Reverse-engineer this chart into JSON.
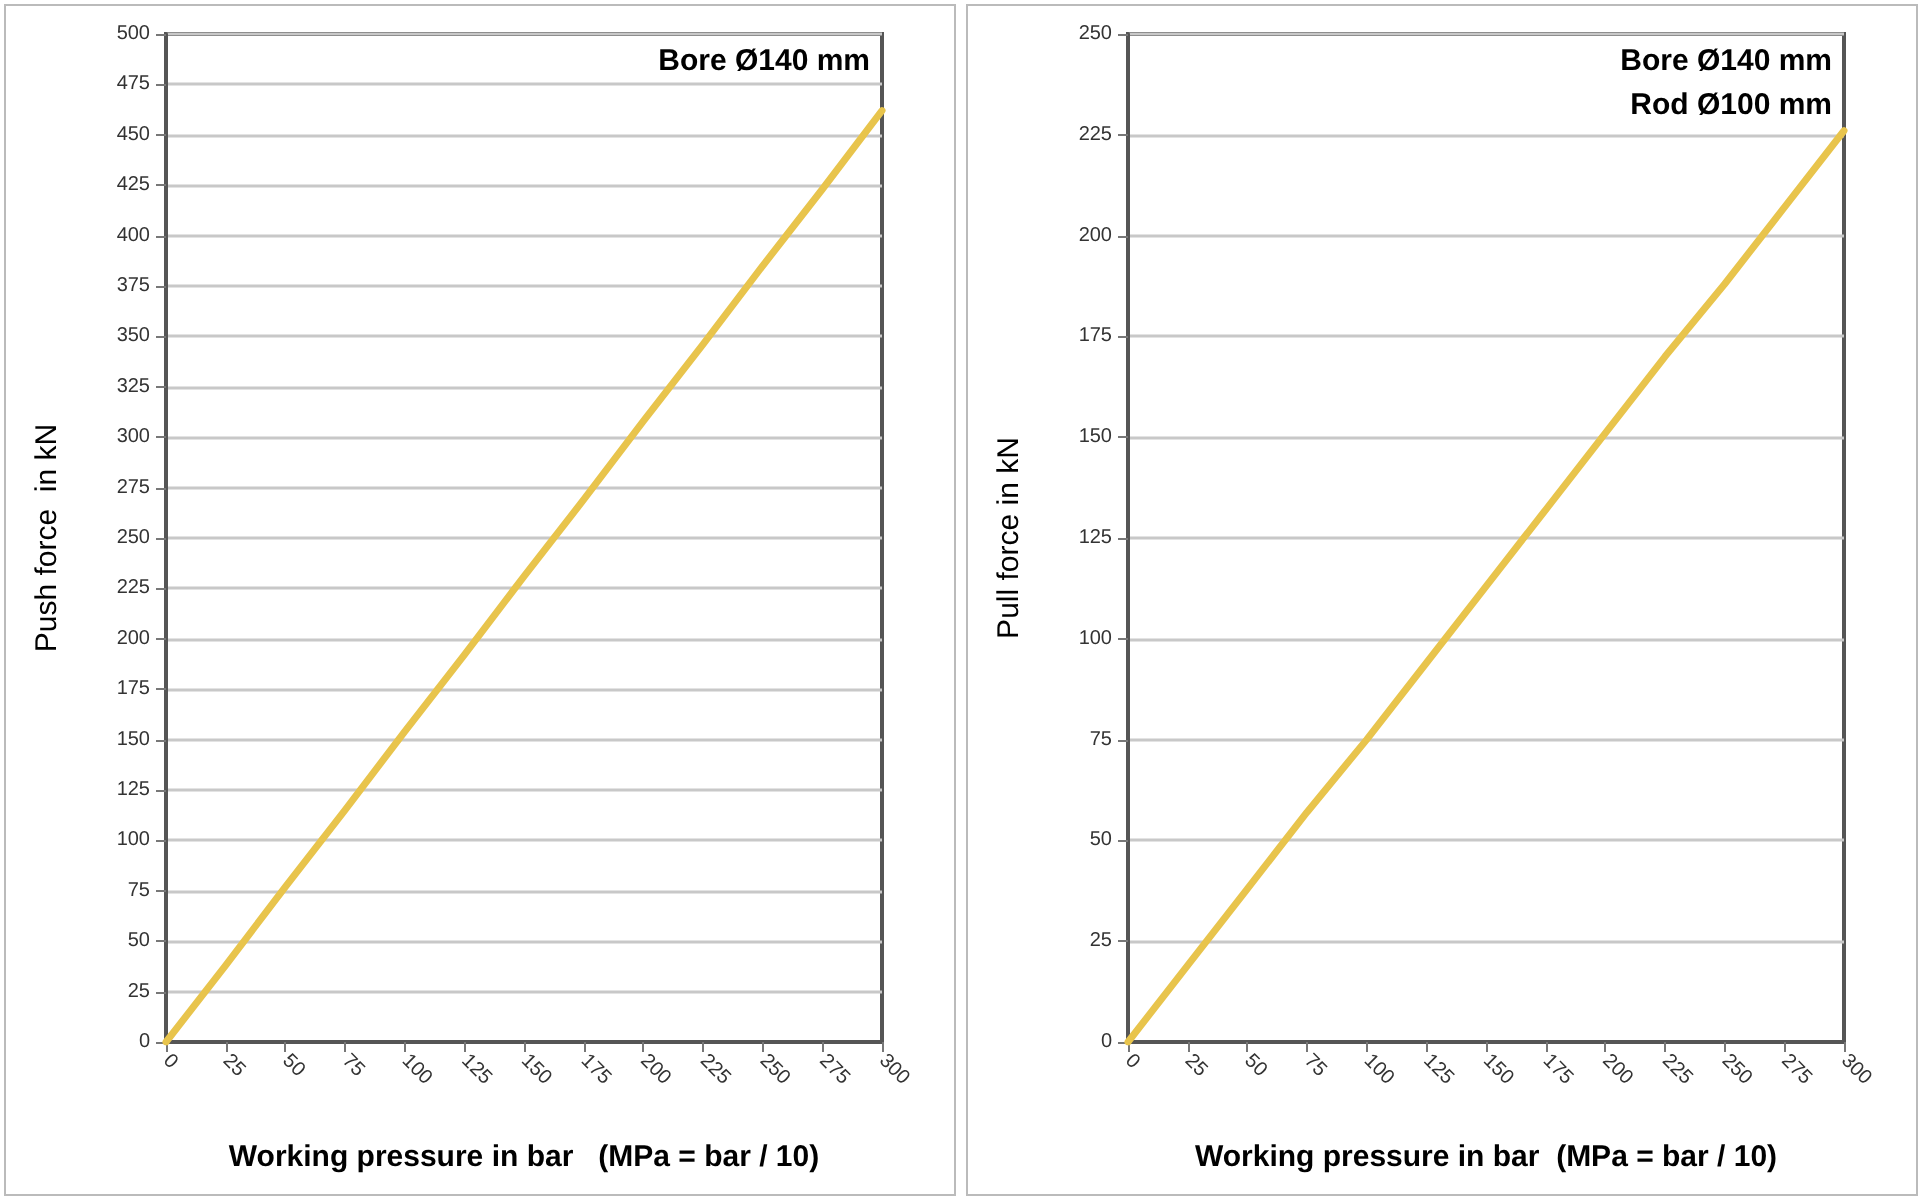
{
  "chart_data": [
    {
      "type": "line",
      "ylabel": "Push force  in kN",
      "xlabel": "Working pressure in bar   (MPa = bar / 10)",
      "annotations": [
        "Bore Ø140 mm"
      ],
      "x": [
        0,
        25,
        50,
        75,
        100,
        125,
        150,
        175,
        200,
        225,
        250,
        275,
        300
      ],
      "series": [
        {
          "color": "#e8c44c",
          "values": [
            0,
            38,
            77,
            115,
            154,
            192,
            231,
            269,
            308,
            346,
            385,
            423,
            462
          ]
        }
      ],
      "xlim": [
        0,
        300
      ],
      "xticks": [
        0,
        25,
        50,
        75,
        100,
        125,
        150,
        175,
        200,
        225,
        250,
        275,
        300
      ],
      "ylim": [
        0,
        500
      ],
      "yticks": [
        0,
        25,
        50,
        75,
        100,
        125,
        150,
        175,
        200,
        225,
        250,
        275,
        300,
        325,
        350,
        375,
        400,
        425,
        450,
        475,
        500
      ],
      "grid": "y",
      "marker": "none",
      "line_style": "solid"
    },
    {
      "type": "line",
      "ylabel": "Pull force in kN",
      "xlabel": "Working pressure in bar  (MPa = bar / 10)",
      "annotations": [
        "Bore Ø140 mm",
        "Rod Ø100 mm"
      ],
      "x": [
        0,
        25,
        50,
        75,
        100,
        125,
        150,
        175,
        200,
        225,
        250,
        275,
        300
      ],
      "series": [
        {
          "color": "#e8c44c",
          "values": [
            0,
            19,
            38,
            57,
            75,
            94,
            113,
            132,
            151,
            170,
            188,
            207,
            226
          ]
        }
      ],
      "xlim": [
        0,
        300
      ],
      "xticks": [
        0,
        25,
        50,
        75,
        100,
        125,
        150,
        175,
        200,
        225,
        250,
        275,
        300
      ],
      "ylim": [
        0,
        250
      ],
      "yticks": [
        0,
        25,
        50,
        75,
        100,
        125,
        150,
        175,
        200,
        225,
        250
      ],
      "grid": "y",
      "marker": "none",
      "line_style": "solid"
    }
  ]
}
